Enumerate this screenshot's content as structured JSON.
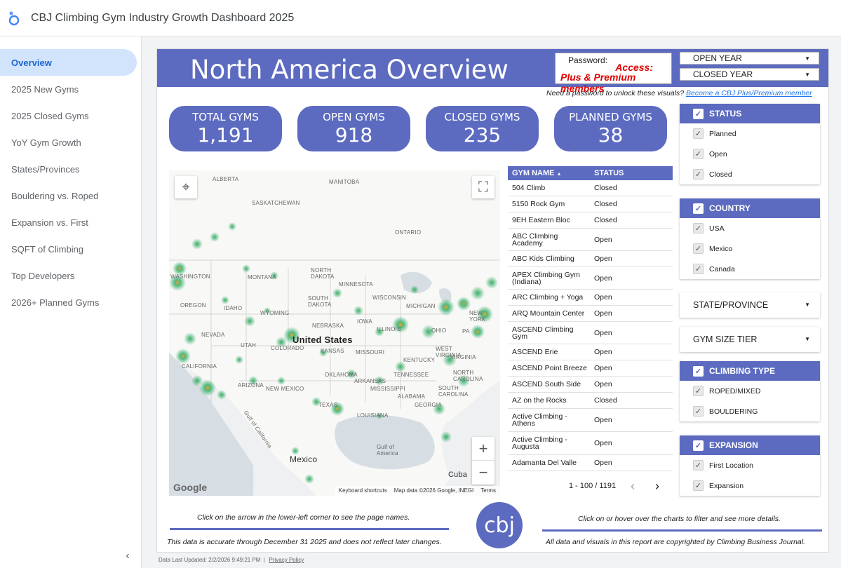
{
  "app": {
    "title": "CBJ Climbing Gym Industry Growth Dashboard 2025"
  },
  "sidebar": {
    "items": [
      {
        "label": "Overview",
        "active": true
      },
      {
        "label": "2025 New Gyms"
      },
      {
        "label": "2025 Closed Gyms"
      },
      {
        "label": "YoY Gym Growth"
      },
      {
        "label": "States/Provinces"
      },
      {
        "label": "Bouldering vs. Roped"
      },
      {
        "label": "Expansion vs. First"
      },
      {
        "label": "SQFT of Climbing"
      },
      {
        "label": "Top Developers"
      },
      {
        "label": "2026+ Planned Gyms"
      }
    ],
    "collapse_icon": "chevron-left-icon"
  },
  "report": {
    "banner_title": "North America Overview",
    "password": {
      "label": "Password:",
      "access": "Access:",
      "members": "Plus & Premium members"
    },
    "dropdowns": {
      "open_year": "OPEN YEAR",
      "closed_year": "CLOSED YEAR"
    },
    "pw_note": {
      "text": "Need a password to unlock these visuals? ",
      "link": "Become a CBJ Plus/Premium member"
    },
    "kpis": {
      "total": {
        "label": "TOTAL GYMS",
        "value": "1,191"
      },
      "open": {
        "label": "OPEN GYMS",
        "value": "918"
      },
      "closed": {
        "label": "CLOSED GYMS",
        "value": "235"
      },
      "planned": {
        "label": "PLANNED GYMS",
        "value": "38"
      }
    },
    "map": {
      "labels": {
        "alberta": "ALBERTA",
        "manitoba": "MANITOBA",
        "saskatchewan": "SASKATCHEWAN",
        "ontario": "ONTARIO",
        "washington": "WASHINGTON",
        "montana": "MONTANA",
        "north_dakota": "NORTH DAKOTA",
        "minnesota": "MINNESOTA",
        "south_dakota": "SOUTH DAKOTA",
        "wisconsin": "WISCONSIN",
        "michigan": "MICHIGAN",
        "new_york": "NEW YORK",
        "oregon": "OREGON",
        "idaho": "IDAHO",
        "wyoming": "WYOMING",
        "iowa": "IOWA",
        "nebraska": "NEBRASKA",
        "illinois": "ILLINOIS",
        "ohio": "OHIO",
        "pennsylvania": "PA",
        "nevada": "NEVADA",
        "utah": "UTAH",
        "colorado": "COLORADO",
        "united_states": "United States",
        "kansas": "KANSAS",
        "missouri": "MISSOURI",
        "kentucky": "KENTUCKY",
        "west_virginia": "WEST VIRGINIA",
        "virginia": "VIRGINIA",
        "california": "CALIFORNIA",
        "oklahoma": "OKLAHOMA",
        "tennessee": "TENNESSEE",
        "north_carolina": "NORTH CAROLINA",
        "arizona": "ARIZONA",
        "new_mexico": "NEW MEXICO",
        "arkansas": "ARKANSAS",
        "south_carolina": "SOUTH CAROLINA",
        "mississippi": "MISSISSIPPI",
        "alabama": "ALABAMA",
        "georgia": "GEORGIA",
        "texas": "TEXAS",
        "louisiana": "LOUISIANA",
        "mexico": "Mexico",
        "gulf": "Gulf of America",
        "cuba": "Cuba",
        "gulf_cal": "Gulf of California"
      },
      "google": "Google",
      "attribution": [
        "Keyboard shortcuts",
        "Map data ©2026 Google, INEGI",
        "Terms"
      ]
    },
    "table": {
      "headers": {
        "name": "GYM NAME",
        "sort_icon": "sort-asc-icon",
        "status": "STATUS"
      },
      "rows": [
        {
          "name": "504 Climb",
          "status": "Closed"
        },
        {
          "name": "5150 Rock Gym",
          "status": "Closed"
        },
        {
          "name": "9EH Eastern Bloc",
          "status": "Closed"
        },
        {
          "name": "ABC Climbing Academy",
          "status": "Open"
        },
        {
          "name": "ABC Kids Climbing",
          "status": "Open"
        },
        {
          "name": "APEX Climbing Gym (Indiana)",
          "status": "Open"
        },
        {
          "name": "ARC Climbing + Yoga",
          "status": "Open"
        },
        {
          "name": "ARQ Mountain Center",
          "status": "Open"
        },
        {
          "name": "ASCEND Climbing Gym",
          "status": "Open"
        },
        {
          "name": "ASCEND Erie",
          "status": "Open"
        },
        {
          "name": "ASCEND Point Breeze",
          "status": "Open"
        },
        {
          "name": "ASCEND South Side",
          "status": "Open"
        },
        {
          "name": "AZ on the Rocks",
          "status": "Closed"
        },
        {
          "name": "Active Climbing - Athens",
          "status": "Open"
        },
        {
          "name": "Active Climbing - Augusta",
          "status": "Open"
        },
        {
          "name": "Adamanta Del Valle",
          "status": "Open"
        }
      ],
      "pager": "1 - 100 / 1191"
    },
    "filters": {
      "status": {
        "title": "STATUS",
        "items": [
          "Planned",
          "Open",
          "Closed"
        ]
      },
      "country": {
        "title": "COUNTRY",
        "items": [
          "USA",
          "Mexico",
          "Canada"
        ]
      },
      "state": "STATE/PROVINCE",
      "size": "GYM SIZE TIER",
      "climbing": {
        "title": "CLIMBING TYPE",
        "items": [
          "ROPED/MIXED",
          "BOULDERING"
        ]
      },
      "expansion": {
        "title": "EXPANSION",
        "items": [
          "First Location",
          "Expansion"
        ]
      }
    },
    "footer": {
      "note_left": "Click on the arrow in the lower-left corner to see the page names.",
      "note_right": "Click on or hover over the charts to filter and see more details.",
      "foot_left": "This data is accurate through December 31 2025 and does not reflect later changes.",
      "foot_right": "All data and visuals in this report are copyrighted by Climbing Business Journal.",
      "logo": "cbj"
    }
  },
  "status_bar": {
    "updated": "Data Last Updated: 2/2/2026 9:49:21 PM",
    "sep": "|",
    "privacy": "Privacy Policy"
  },
  "colors": {
    "accent": "#5c6bc0",
    "active_nav_bg": "#d2e3fc",
    "active_nav_text": "#1967d2",
    "access_red": "#e00000"
  }
}
